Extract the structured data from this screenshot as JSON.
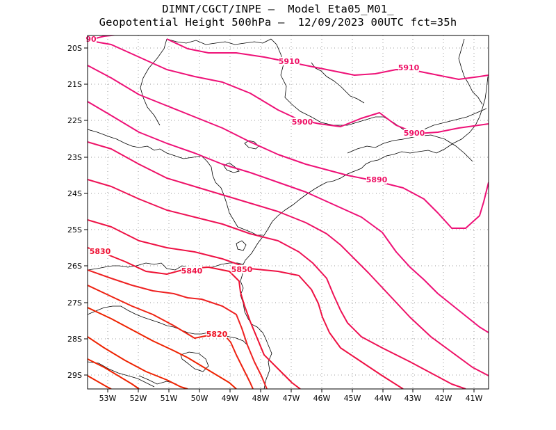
{
  "title": {
    "line1": "DIMNT/CGCT/INPE —  Model Eta05_M01_",
    "line2": "Geopotential Height 500hPa —  12/09/2023 00UTC fct=35h"
  },
  "axes": {
    "lon_ticks": [
      "53W",
      "52W",
      "51W",
      "50W",
      "49W",
      "48W",
      "47W",
      "46W",
      "45W",
      "44W",
      "43W",
      "42W",
      "41W"
    ],
    "lat_ticks": [
      "20S",
      "21S",
      "22S",
      "23S",
      "24S",
      "25S",
      "26S",
      "27S",
      "28S",
      "29S"
    ],
    "lon_range": [
      -53.6,
      -40.5
    ],
    "lat_range": [
      -29.4,
      -19.7
    ],
    "grid": "dotted"
  },
  "contours": {
    "variable": "geopotential height 500hPa (gpm)",
    "interval": 10,
    "labels": [
      {
        "text": "5910",
        "color": "#ee1166"
      },
      {
        "text": "5910",
        "color": "#ee1166"
      },
      {
        "text": "5900",
        "color": "#ee1166"
      },
      {
        "text": "5900",
        "color": "#ee1166"
      },
      {
        "text": "5890",
        "color": "#ee1166"
      },
      {
        "text": "5850",
        "color": "#ee1144"
      },
      {
        "text": "5840",
        "color": "#ee1144"
      },
      {
        "text": "5830",
        "color": "#ee1133"
      },
      {
        "text": "5820",
        "color": "#ee1122"
      },
      {
        "text": "90",
        "color": "#ee1166"
      }
    ]
  },
  "colors": {
    "high": "#ee1177",
    "mid": "#ee1144",
    "low": "#ee2200",
    "coast": "#000000",
    "grid": "#888888"
  }
}
